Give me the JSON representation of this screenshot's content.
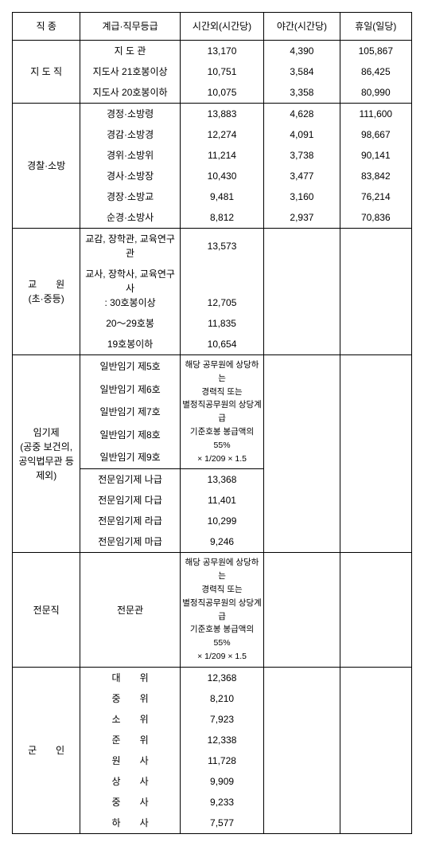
{
  "headers": {
    "col1": "직 종",
    "col2": "계급·직무등급",
    "col3": "시간외(시간당)",
    "col4": "야간(시간당)",
    "col5": "휴일(일당)"
  },
  "guidance": {
    "label": "지 도 직",
    "rows": [
      {
        "rank": "지 도 관",
        "c3": "13,170",
        "c4": "4,390",
        "c5": "105,867"
      },
      {
        "rank": "지도사 21호봉이상",
        "c3": "10,751",
        "c4": "3,584",
        "c5": "86,425"
      },
      {
        "rank": "지도사 20호봉이하",
        "c3": "10,075",
        "c4": "3,358",
        "c5": "80,990"
      }
    ]
  },
  "police": {
    "label": "경찰·소방",
    "rows": [
      {
        "rank": "경정·소방령",
        "c3": "13,883",
        "c4": "4,628",
        "c5": "111,600"
      },
      {
        "rank": "경감·소방경",
        "c3": "12,274",
        "c4": "4,091",
        "c5": "98,667"
      },
      {
        "rank": "경위·소방위",
        "c3": "11,214",
        "c4": "3,738",
        "c5": "90,141"
      },
      {
        "rank": "경사·소방장",
        "c3": "10,430",
        "c4": "3,477",
        "c5": "83,842"
      },
      {
        "rank": "경장·소방교",
        "c3": "9,481",
        "c4": "3,160",
        "c5": "76,214"
      },
      {
        "rank": "순경·소방사",
        "c3": "8,812",
        "c4": "2,937",
        "c5": "70,836"
      }
    ]
  },
  "teacher": {
    "label": "교　　원\n(초·중등)",
    "rows": [
      {
        "rank": "교감, 장학관, 교육연구관",
        "c3": "13,573"
      },
      {
        "rank": "교사, 장학사, 교육연구사\n: 30호봉이상",
        "c3": "12,705"
      },
      {
        "rank": "20～29호봉",
        "c3": "11,835"
      },
      {
        "rank": "19호봉이하",
        "c3": "10,654"
      }
    ]
  },
  "term": {
    "label": "임기제\n(공중 보건의,\n공익법무관 등\n제외)",
    "general": {
      "ranks": [
        "일반임기 제5호",
        "일반임기 제6호",
        "일반임기 제7호",
        "일반임기 제8호",
        "일반임기 제9호"
      ],
      "desc": "해당 공무원에 상당하는\n경력직 또는\n별정직공무원의 상당계급\n기준호봉 봉급액의55%\n× 1/209 × 1.5"
    },
    "expert": [
      {
        "rank": "전문임기제 나급",
        "c3": "13,368"
      },
      {
        "rank": "전문임기제 다급",
        "c3": "11,401"
      },
      {
        "rank": "전문임기제 라급",
        "c3": "10,299"
      },
      {
        "rank": "전문임기제 마급",
        "c3": "9,246"
      }
    ]
  },
  "specialist": {
    "label": "전문직",
    "rank": "전문관",
    "desc": "해당 공무원에 상당하는\n경력직 또는\n별정직공무원의 상당계급\n기준호봉 봉급액의55%\n× 1/209 × 1.5"
  },
  "military": {
    "label": "군　　인",
    "rows": [
      {
        "rank": "대　　위",
        "c3": "12,368"
      },
      {
        "rank": "중　　위",
        "c3": "8,210"
      },
      {
        "rank": "소　　위",
        "c3": "7,923"
      },
      {
        "rank": "준　　위",
        "c3": "12,338"
      },
      {
        "rank": "원　　사",
        "c3": "11,728"
      },
      {
        "rank": "상　　사",
        "c3": "9,909"
      },
      {
        "rank": "중　　사",
        "c3": "9,233"
      },
      {
        "rank": "하　　사",
        "c3": "7,577"
      }
    ]
  }
}
